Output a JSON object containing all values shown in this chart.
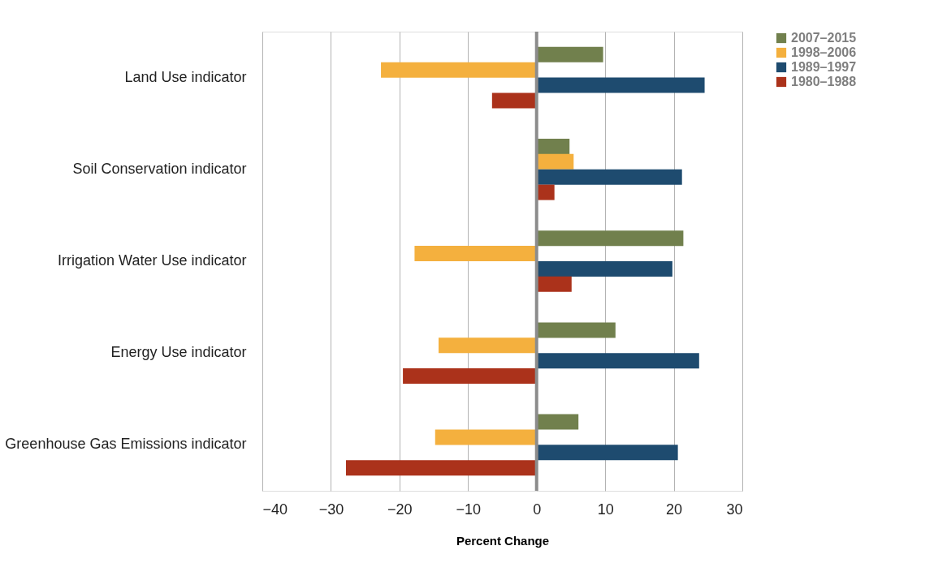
{
  "chart_data": {
    "type": "bar",
    "orientation": "horizontal",
    "xlabel": "Percent Change",
    "categories": [
      "Land Use indicator",
      "Soil Conservation indicator",
      "Irrigation Water Use indicator",
      "Energy Use indicator",
      "Greenhouse Gas Emissions indicator"
    ],
    "series": [
      {
        "name": "2007–2015",
        "color": "#71804d",
        "values": [
          9.7,
          4.8,
          21.4,
          11.5,
          6.1
        ]
      },
      {
        "name": "1998–2006",
        "color": "#f4b03e",
        "values": [
          -22.7,
          5.4,
          -17.8,
          -14.3,
          -14.8
        ]
      },
      {
        "name": "1989–1997",
        "color": "#1e4b6f",
        "values": [
          24.5,
          21.2,
          19.8,
          23.7,
          20.6
        ]
      },
      {
        "name": "1980–1988",
        "color": "#ab321b",
        "values": [
          -6.5,
          2.6,
          5.1,
          -19.5,
          -27.8
        ]
      }
    ],
    "xlim": [
      -40,
      30
    ],
    "xticks": [
      -40,
      -30,
      -20,
      -10,
      0,
      10,
      20,
      30
    ],
    "ref_lines": [
      {
        "axis": "x",
        "value": 0,
        "color": "#8c8c8c"
      }
    ],
    "grid": "x",
    "legend": "top right"
  }
}
